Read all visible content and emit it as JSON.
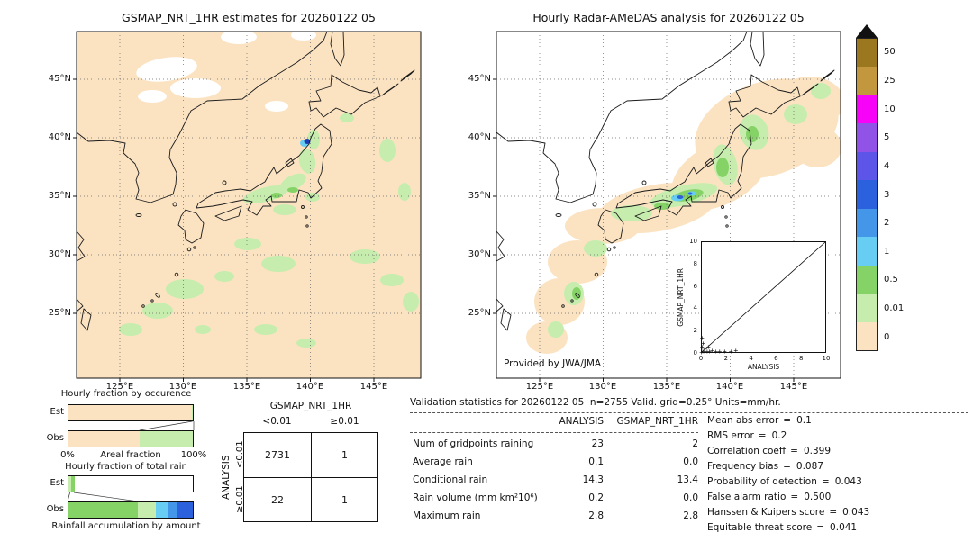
{
  "colors": {
    "peach": "#fbe3c2",
    "light_green": "#c6edae",
    "green": "#85d266",
    "cyan": "#67cdf2",
    "light_blue": "#4496e8",
    "blue": "#2b61dc",
    "indigo": "#5d55e8",
    "purple": "#9152e8",
    "magenta": "#f703f7",
    "tan": "#c3973d",
    "brown": "#9b781f",
    "navy": "#1b3bb2"
  },
  "maps": {
    "lat_labels": [
      "45°N",
      "40°N",
      "35°N",
      "30°N",
      "25°N"
    ],
    "lon_labels": [
      "125°E",
      "130°E",
      "135°E",
      "140°E",
      "145°E"
    ],
    "left": {
      "title": "GSMAP_NRT_1HR estimates for 20260122 05"
    },
    "right": {
      "title": "Hourly Radar-AMeDAS analysis for 20260122 05",
      "credit": "Provided by JWA/JMA"
    }
  },
  "inset": {
    "xlabel": "ANALYSIS",
    "ylabel": "GSMAP_NRT_1HR",
    "ticks": [
      "0",
      "2",
      "4",
      "6",
      "8",
      "10"
    ]
  },
  "colorbar": {
    "overflow_symbol": "triangle-up",
    "overflow_color": "#111111",
    "entries": [
      {
        "label": "50",
        "color": "#9b781f"
      },
      {
        "label": "25",
        "color": "#c3973d"
      },
      {
        "label": "10",
        "color": "#f703f7"
      },
      {
        "label": "5",
        "color": "#9152e8"
      },
      {
        "label": "4",
        "color": "#5d55e8"
      },
      {
        "label": "3",
        "color": "#2b61dc"
      },
      {
        "label": "2",
        "color": "#4496e8"
      },
      {
        "label": "1",
        "color": "#67cdf2"
      },
      {
        "label": "0.5",
        "color": "#85d266"
      },
      {
        "label": "0.01",
        "color": "#c6edae"
      },
      {
        "label": "0",
        "color": "#fbe3c2"
      }
    ]
  },
  "fractions": {
    "chart1": {
      "title": "Hourly fraction by occurence",
      "rows": [
        "Est",
        "Obs"
      ],
      "x_min": "0%",
      "x_max": "100%",
      "x_label": "Areal fraction",
      "bars": {
        "est": [
          {
            "color": "#fbe3c2",
            "from": 0,
            "to": 99
          },
          {
            "color": "#c6edae",
            "from": 99,
            "to": 100
          }
        ],
        "obs": [
          {
            "color": "#fbe3c2",
            "from": 0,
            "to": 57
          },
          {
            "color": "#c6edae",
            "from": 57,
            "to": 100
          }
        ]
      }
    },
    "chart2": {
      "title": "Hourly fraction of total rain",
      "rows": [
        "Est",
        "Obs"
      ],
      "x_label": "Rainfall accumulation by amount",
      "bars": {
        "est": [
          {
            "color": "#c6edae",
            "from": 0,
            "to": 2
          },
          {
            "color": "#85d266",
            "from": 2,
            "to": 5
          }
        ],
        "obs": [
          {
            "color": "#85d266",
            "from": 0,
            "to": 56
          },
          {
            "color": "#c6edae",
            "from": 56,
            "to": 70
          },
          {
            "color": "#67cdf2",
            "from": 70,
            "to": 80
          },
          {
            "color": "#4496e8",
            "from": 80,
            "to": 88
          },
          {
            "color": "#2b61dc",
            "from": 88,
            "to": 100
          }
        ]
      }
    }
  },
  "contingency": {
    "col_axis": "GSMAP_NRT_1HR",
    "row_axis": "ANALYSIS",
    "col_labels": [
      "<0.01",
      "≥0.01"
    ],
    "row_labels": [
      "<0.01",
      "≥0.01"
    ],
    "cells": [
      [
        "2731",
        "1"
      ],
      [
        "22",
        "1"
      ]
    ]
  },
  "stats": {
    "title": "Validation statistics for 20260122 05  n=2755 Valid. grid=0.25° Units=mm/hr.",
    "col_headers": [
      "ANALYSIS",
      "GSMAP_NRT_1HR"
    ],
    "rows": [
      {
        "label": "Num of gridpoints raining",
        "analysis": "23",
        "gsmap": "2"
      },
      {
        "label": "Average rain",
        "analysis": "0.1",
        "gsmap": "0.0"
      },
      {
        "label": "Conditional rain",
        "analysis": "14.3",
        "gsmap": "13.4"
      },
      {
        "label": "Rain volume (mm km²10⁶)",
        "analysis": "0.2",
        "gsmap": "0.0"
      },
      {
        "label": "Maximum rain",
        "analysis": "2.8",
        "gsmap": "2.8"
      }
    ],
    "eq": "=",
    "metrics": [
      {
        "label": "Mean abs error",
        "value": "0.1"
      },
      {
        "label": "RMS error",
        "value": "0.2"
      },
      {
        "label": "Correlation coeff",
        "value": "0.399"
      },
      {
        "label": "Frequency bias",
        "value": "0.087"
      },
      {
        "label": "Probability of detection",
        "value": "0.043"
      },
      {
        "label": "False alarm ratio",
        "value": "0.500"
      },
      {
        "label": "Hanssen & Kuipers score",
        "value": "0.043"
      },
      {
        "label": "Equitable threat score",
        "value": "0.041"
      }
    ]
  },
  "chart_data": [
    {
      "type": "heatmap",
      "title": "GSMAP_NRT_1HR estimates for 20260122 05",
      "x_ticks": [
        "125°E",
        "130°E",
        "135°E",
        "140°E",
        "145°E"
      ],
      "y_ticks": [
        "45°N",
        "40°N",
        "35°N",
        "30°N",
        "25°N"
      ],
      "units": "mm/hr",
      "levels": [
        0,
        0.01,
        0.5,
        1,
        2,
        3,
        4,
        5,
        10,
        25,
        50
      ],
      "palette_low_to_high": [
        "#fbe3c2",
        "#c6edae",
        "#85d266",
        "#67cdf2",
        "#4496e8",
        "#2b61dc",
        "#5d55e8",
        "#9152e8",
        "#f703f7",
        "#c3973d",
        "#9b781f"
      ]
    },
    {
      "type": "heatmap",
      "title": "Hourly Radar-AMeDAS analysis for 20260122 05",
      "x_ticks": [
        "125°E",
        "130°E",
        "135°E",
        "140°E",
        "145°E"
      ],
      "y_ticks": [
        "45°N",
        "40°N",
        "35°N",
        "30°N",
        "25°N"
      ],
      "units": "mm/hr",
      "levels": [
        0,
        0.01,
        0.5,
        1,
        2,
        3,
        4,
        5,
        10,
        25,
        50
      ],
      "palette_low_to_high": [
        "#fbe3c2",
        "#c6edae",
        "#85d266",
        "#67cdf2",
        "#4496e8",
        "#2b61dc",
        "#5d55e8",
        "#9152e8",
        "#f703f7",
        "#c3973d",
        "#9b781f"
      ]
    },
    {
      "type": "scatter",
      "title": "GSMAP_NRT_1HR vs ANALYSIS inset",
      "xlabel": "ANALYSIS",
      "ylabel": "GSMAP_NRT_1HR",
      "xlim": [
        0,
        10
      ],
      "ylim": [
        0,
        10
      ],
      "x_ticks": [
        0,
        2,
        4,
        6,
        8,
        10
      ],
      "y_ticks": [
        0,
        2,
        4,
        6,
        8,
        10
      ],
      "diagonal_line": true,
      "marker": "+",
      "points": [
        [
          0.05,
          0.02
        ],
        [
          0.15,
          0.08
        ],
        [
          0.3,
          0.05
        ],
        [
          0.5,
          0.12
        ],
        [
          0.7,
          0.05
        ],
        [
          0.9,
          0.2
        ],
        [
          1.2,
          0.08
        ],
        [
          1.5,
          0.05
        ],
        [
          1.9,
          0.12
        ],
        [
          2.4,
          0.05
        ],
        [
          2.8,
          0.15
        ],
        [
          0.1,
          0.45
        ],
        [
          0.2,
          0.8
        ],
        [
          0.1,
          1.3
        ],
        [
          0.05,
          2.8
        ],
        [
          0.35,
          0.3
        ],
        [
          0.6,
          0.5
        ]
      ]
    },
    {
      "type": "bar",
      "title": "Hourly fraction by occurence",
      "orientation": "horizontal-stacked-100pct",
      "categories": [
        "Est",
        "Obs"
      ],
      "xlabel": "Areal fraction",
      "x_range_labels": [
        "0%",
        "100%"
      ],
      "series": [
        {
          "name": "Est",
          "segments": [
            {
              "color": "#fbe3c2",
              "from_pct": 0,
              "to_pct": 99
            },
            {
              "color": "#c6edae",
              "from_pct": 99,
              "to_pct": 100
            }
          ]
        },
        {
          "name": "Obs",
          "segments": [
            {
              "color": "#fbe3c2",
              "from_pct": 0,
              "to_pct": 57
            },
            {
              "color": "#c6edae",
              "from_pct": 57,
              "to_pct": 100
            }
          ]
        }
      ]
    },
    {
      "type": "bar",
      "title": "Hourly fraction of total rain",
      "orientation": "horizontal-stacked-100pct",
      "categories": [
        "Est",
        "Obs"
      ],
      "xlabel": "Rainfall accumulation by amount",
      "series": [
        {
          "name": "Est",
          "segments": [
            {
              "color": "#c6edae",
              "from_pct": 0,
              "to_pct": 2
            },
            {
              "color": "#85d266",
              "from_pct": 2,
              "to_pct": 5
            }
          ]
        },
        {
          "name": "Obs",
          "segments": [
            {
              "color": "#85d266",
              "from_pct": 0,
              "to_pct": 56
            },
            {
              "color": "#c6edae",
              "from_pct": 56,
              "to_pct": 70
            },
            {
              "color": "#67cdf2",
              "from_pct": 70,
              "to_pct": 80
            },
            {
              "color": "#4496e8",
              "from_pct": 80,
              "to_pct": 88
            },
            {
              "color": "#2b61dc",
              "from_pct": 88,
              "to_pct": 100
            }
          ]
        }
      ]
    },
    {
      "type": "table",
      "title": "Contingency table",
      "col_axis": "GSMAP_NRT_1HR",
      "row_axis": "ANALYSIS",
      "col_labels": [
        "<0.01",
        "≥0.01"
      ],
      "row_labels": [
        "<0.01",
        "≥0.01"
      ],
      "values": [
        [
          2731,
          1
        ],
        [
          22,
          1
        ]
      ]
    },
    {
      "type": "table",
      "title": "Validation statistics for 20260122 05  n=2755 Valid. grid=0.25° Units=mm/hr.",
      "columns": [
        "",
        "ANALYSIS",
        "GSMAP_NRT_1HR"
      ],
      "rows": [
        [
          "Num of gridpoints raining",
          23,
          2
        ],
        [
          "Average rain",
          0.1,
          0.0
        ],
        [
          "Conditional rain",
          14.3,
          13.4
        ],
        [
          "Rain volume (mm km²10⁶)",
          0.2,
          0.0
        ],
        [
          "Maximum rain",
          2.8,
          2.8
        ]
      ],
      "scores": {
        "Mean abs error": 0.1,
        "RMS error": 0.2,
        "Correlation coeff": 0.399,
        "Frequency bias": 0.087,
        "Probability of detection": 0.043,
        "False alarm ratio": 0.5,
        "Hanssen & Kuipers score": 0.043,
        "Equitable threat score": 0.041
      }
    }
  ]
}
